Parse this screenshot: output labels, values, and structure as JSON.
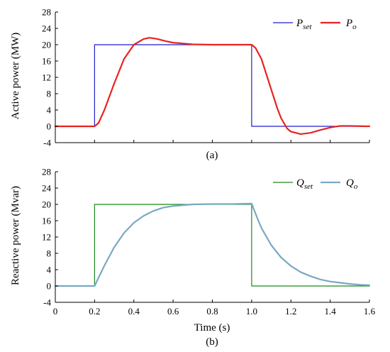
{
  "colors": {
    "p_set": "#1f1fcc",
    "p_o": "#e8231f",
    "q_set": "#1a8a1a",
    "q_o": "#79a9c3",
    "axis": "#000000"
  },
  "chart_data": [
    {
      "type": "line",
      "caption": "(a)",
      "ylabel": "Active power (MW)",
      "xlim": [
        0,
        1.6
      ],
      "ylim": [
        -4,
        28
      ],
      "yticks": [
        -4,
        0,
        4,
        8,
        12,
        16,
        20,
        24,
        28
      ],
      "xticks": [
        0,
        0.2,
        0.4,
        0.6,
        0.8,
        1.0,
        1.2,
        1.4,
        1.6
      ],
      "grid": false,
      "legend_position": "top-right",
      "series": [
        {
          "name": "P",
          "name_sub": "set",
          "color": "#1f1fcc",
          "step": true,
          "x": [
            0,
            0.2,
            0.2,
            1.0,
            1.0,
            1.6
          ],
          "y": [
            0,
            0,
            20,
            20,
            0,
            0
          ]
        },
        {
          "name": "P",
          "name_sub": "o",
          "color": "#e8231f",
          "step": false,
          "x": [
            0,
            0.2,
            0.22,
            0.25,
            0.3,
            0.35,
            0.4,
            0.45,
            0.48,
            0.52,
            0.56,
            0.6,
            0.7,
            0.8,
            0.9,
            1.0,
            1.02,
            1.05,
            1.08,
            1.1,
            1.13,
            1.15,
            1.18,
            1.2,
            1.25,
            1.3,
            1.35,
            1.4,
            1.45,
            1.5,
            1.6
          ],
          "y": [
            0,
            0,
            0.8,
            4.0,
            10.5,
            16.5,
            20.0,
            21.4,
            21.7,
            21.4,
            20.9,
            20.5,
            20.1,
            20.0,
            20.0,
            20.0,
            19.2,
            16.5,
            12.0,
            9.0,
            4.5,
            2.0,
            -0.5,
            -1.3,
            -1.9,
            -1.6,
            -0.9,
            -0.3,
            0.1,
            0.1,
            0
          ]
        }
      ]
    },
    {
      "type": "line",
      "caption": "(b)",
      "ylabel": "Reactive power (Mvar)",
      "xlabel": "Time (s)",
      "xlim": [
        0,
        1.6
      ],
      "ylim": [
        -4,
        28
      ],
      "yticks": [
        -4,
        0,
        4,
        8,
        12,
        16,
        20,
        24,
        28
      ],
      "xticks": [
        0,
        0.2,
        0.4,
        0.6,
        0.8,
        1.0,
        1.2,
        1.4,
        1.6
      ],
      "xticklabels": [
        "0",
        "0.2",
        "0.4",
        "0.6",
        "0.8",
        "1.0",
        "1.2",
        "1.4",
        "1.6"
      ],
      "grid": false,
      "legend_position": "top-right",
      "series": [
        {
          "name": "Q",
          "name_sub": "set",
          "color": "#1a8a1a",
          "step": true,
          "x": [
            0,
            0.2,
            0.2,
            1.0,
            1.0,
            1.6
          ],
          "y": [
            0,
            0,
            20,
            20,
            0,
            0
          ]
        },
        {
          "name": "Q",
          "name_sub": "o",
          "color": "#79a9c3",
          "step": false,
          "x": [
            0,
            0.2,
            0.22,
            0.25,
            0.3,
            0.35,
            0.4,
            0.45,
            0.5,
            0.55,
            0.6,
            0.7,
            0.8,
            0.9,
            1.0,
            1.0,
            1.03,
            1.05,
            1.1,
            1.15,
            1.2,
            1.25,
            1.3,
            1.35,
            1.4,
            1.45,
            1.5,
            1.55,
            1.6
          ],
          "y": [
            0,
            0,
            2.0,
            5.0,
            9.5,
            13.0,
            15.5,
            17.2,
            18.4,
            19.2,
            19.6,
            20.0,
            20.1,
            20.1,
            20.2,
            20.2,
            16.5,
            14.2,
            10.0,
            7.0,
            4.9,
            3.4,
            2.4,
            1.6,
            1.1,
            0.8,
            0.5,
            0.3,
            0.2
          ]
        }
      ]
    }
  ]
}
